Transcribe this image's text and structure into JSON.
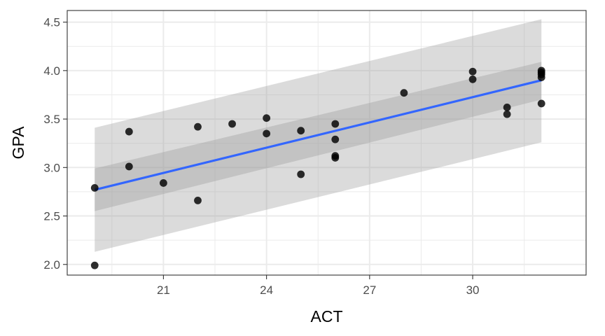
{
  "chart_data": {
    "type": "scatter",
    "title": "",
    "xlabel": "ACT",
    "ylabel": "GPA",
    "xlim": [
      18.2,
      33.3
    ],
    "ylim": [
      1.89,
      4.62
    ],
    "x_ticks": [
      21,
      24,
      27,
      30
    ],
    "y_ticks": [
      2.0,
      2.5,
      3.0,
      3.5,
      4.0,
      4.5
    ],
    "x_tick_labels": [
      "21",
      "24",
      "27",
      "30"
    ],
    "y_tick_labels": [
      "2.0",
      "2.5",
      "3.0",
      "3.5",
      "4.0",
      "4.5"
    ],
    "grid": true,
    "legend": "none",
    "series": [
      {
        "x": [
          19,
          19,
          20,
          20,
          21,
          22,
          22,
          23,
          24,
          24,
          25,
          25,
          26,
          26,
          26,
          26,
          28,
          30,
          30,
          31,
          31,
          32,
          32,
          32,
          32,
          32
        ],
        "y": [
          1.99,
          2.79,
          3.01,
          3.37,
          2.84,
          2.66,
          3.42,
          3.45,
          3.35,
          3.51,
          2.93,
          3.38,
          3.1,
          3.12,
          3.29,
          3.45,
          3.77,
          3.91,
          3.99,
          3.55,
          3.62,
          3.66,
          3.93,
          3.96,
          3.98,
          4.0
        ]
      }
    ],
    "trend_line": {
      "x": [
        19,
        32
      ],
      "y": [
        2.77,
        3.9
      ]
    },
    "confidence_band": {
      "x": [
        19,
        32
      ],
      "lower": [
        2.55,
        3.7
      ],
      "upper": [
        2.99,
        4.09
      ]
    },
    "prediction_band": {
      "x": [
        19,
        32
      ],
      "lower": [
        2.13,
        3.26
      ],
      "upper": [
        3.41,
        4.53
      ]
    },
    "colors": {
      "points": "#000000",
      "line": "#3366ff",
      "band": "#999999",
      "grid": "#ebebeb",
      "panel_border": "#333333"
    }
  }
}
